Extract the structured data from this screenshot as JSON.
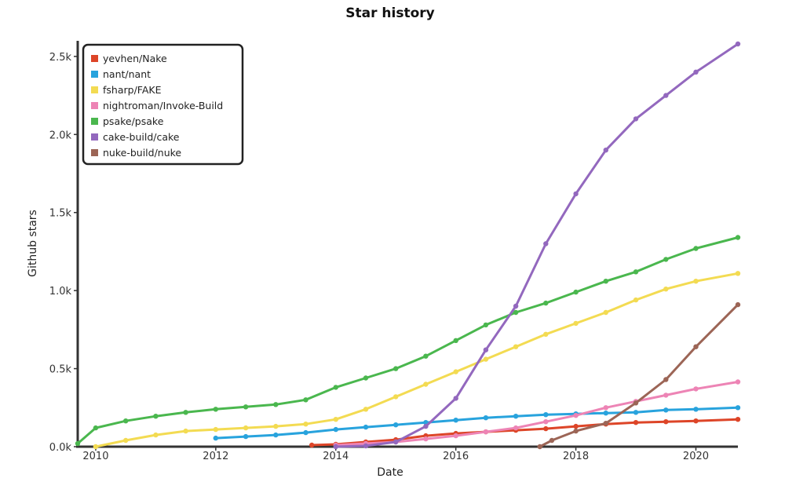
{
  "chart_data": {
    "type": "line",
    "title": "Star history",
    "xlabel": "Date",
    "ylabel": "Github stars",
    "x_ticks": [
      "2010",
      "2012",
      "2014",
      "2016",
      "2018",
      "2020"
    ],
    "y_ticks": [
      "0.0k",
      "0.5k",
      "1.0k",
      "1.5k",
      "2.0k",
      "2.5k"
    ],
    "xlim": [
      2009.7,
      2020.7
    ],
    "ylim": [
      0,
      2600
    ],
    "legend_position": "top-left",
    "grid": false,
    "series": [
      {
        "name": "yevhen/Nake",
        "color": "#dd4528",
        "points": [
          [
            2013.6,
            10
          ],
          [
            2014.0,
            15
          ],
          [
            2014.5,
            30
          ],
          [
            2015.0,
            45
          ],
          [
            2015.5,
            70
          ],
          [
            2016.0,
            85
          ],
          [
            2016.5,
            95
          ],
          [
            2017.0,
            105
          ],
          [
            2017.5,
            115
          ],
          [
            2018.0,
            130
          ],
          [
            2018.5,
            145
          ],
          [
            2019.0,
            155
          ],
          [
            2019.5,
            160
          ],
          [
            2020.0,
            165
          ],
          [
            2020.7,
            175
          ]
        ]
      },
      {
        "name": "nant/nant",
        "color": "#28a3dd",
        "points": [
          [
            2012.0,
            55
          ],
          [
            2012.5,
            65
          ],
          [
            2013.0,
            75
          ],
          [
            2013.5,
            90
          ],
          [
            2014.0,
            110
          ],
          [
            2014.5,
            125
          ],
          [
            2015.0,
            140
          ],
          [
            2015.5,
            155
          ],
          [
            2016.0,
            170
          ],
          [
            2016.5,
            185
          ],
          [
            2017.0,
            195
          ],
          [
            2017.5,
            205
          ],
          [
            2018.0,
            210
          ],
          [
            2018.5,
            215
          ],
          [
            2019.0,
            220
          ],
          [
            2019.5,
            235
          ],
          [
            2020.0,
            240
          ],
          [
            2020.7,
            250
          ]
        ]
      },
      {
        "name": "fsharp/FAKE",
        "color": "#f3db52",
        "points": [
          [
            2010.0,
            0
          ],
          [
            2010.5,
            40
          ],
          [
            2011.0,
            75
          ],
          [
            2011.5,
            100
          ],
          [
            2012.0,
            110
          ],
          [
            2012.5,
            120
          ],
          [
            2013.0,
            130
          ],
          [
            2013.5,
            145
          ],
          [
            2014.0,
            175
          ],
          [
            2014.5,
            240
          ],
          [
            2015.0,
            320
          ],
          [
            2015.5,
            400
          ],
          [
            2016.0,
            480
          ],
          [
            2016.5,
            560
          ],
          [
            2017.0,
            640
          ],
          [
            2017.5,
            720
          ],
          [
            2018.0,
            790
          ],
          [
            2018.5,
            860
          ],
          [
            2019.0,
            940
          ],
          [
            2019.5,
            1010
          ],
          [
            2020.0,
            1060
          ],
          [
            2020.7,
            1110
          ]
        ]
      },
      {
        "name": "nightroman/Invoke-Build",
        "color": "#ed84b5",
        "points": [
          [
            2014.0,
            10
          ],
          [
            2014.5,
            20
          ],
          [
            2015.0,
            30
          ],
          [
            2015.5,
            50
          ],
          [
            2016.0,
            70
          ],
          [
            2016.5,
            95
          ],
          [
            2017.0,
            120
          ],
          [
            2017.5,
            160
          ],
          [
            2018.0,
            200
          ],
          [
            2018.5,
            250
          ],
          [
            2019.0,
            290
          ],
          [
            2019.5,
            330
          ],
          [
            2020.0,
            370
          ],
          [
            2020.7,
            415
          ]
        ]
      },
      {
        "name": "psake/psake",
        "color": "#4ab74e",
        "points": [
          [
            2009.7,
            20
          ],
          [
            2010.0,
            120
          ],
          [
            2010.5,
            165
          ],
          [
            2011.0,
            195
          ],
          [
            2011.5,
            220
          ],
          [
            2012.0,
            240
          ],
          [
            2012.5,
            255
          ],
          [
            2013.0,
            270
          ],
          [
            2013.5,
            300
          ],
          [
            2014.0,
            380
          ],
          [
            2014.5,
            440
          ],
          [
            2015.0,
            500
          ],
          [
            2015.5,
            580
          ],
          [
            2016.0,
            680
          ],
          [
            2016.5,
            780
          ],
          [
            2017.0,
            860
          ],
          [
            2017.5,
            920
          ],
          [
            2018.0,
            990
          ],
          [
            2018.5,
            1060
          ],
          [
            2019.0,
            1120
          ],
          [
            2019.5,
            1200
          ],
          [
            2020.0,
            1270
          ],
          [
            2020.7,
            1340
          ]
        ]
      },
      {
        "name": "cake-build/cake",
        "color": "#9368be",
        "points": [
          [
            2014.0,
            0
          ],
          [
            2014.5,
            5
          ],
          [
            2015.0,
            30
          ],
          [
            2015.5,
            130
          ],
          [
            2016.0,
            310
          ],
          [
            2016.5,
            620
          ],
          [
            2017.0,
            900
          ],
          [
            2017.5,
            1300
          ],
          [
            2018.0,
            1620
          ],
          [
            2018.5,
            1900
          ],
          [
            2019.0,
            2100
          ],
          [
            2019.5,
            2250
          ],
          [
            2020.0,
            2400
          ],
          [
            2020.7,
            2580
          ]
        ]
      },
      {
        "name": "nuke-build/nuke",
        "color": "#9c6556",
        "points": [
          [
            2017.4,
            0
          ],
          [
            2017.6,
            40
          ],
          [
            2018.0,
            100
          ],
          [
            2018.5,
            150
          ],
          [
            2019.0,
            280
          ],
          [
            2019.5,
            430
          ],
          [
            2020.0,
            640
          ],
          [
            2020.7,
            910
          ]
        ]
      }
    ]
  }
}
